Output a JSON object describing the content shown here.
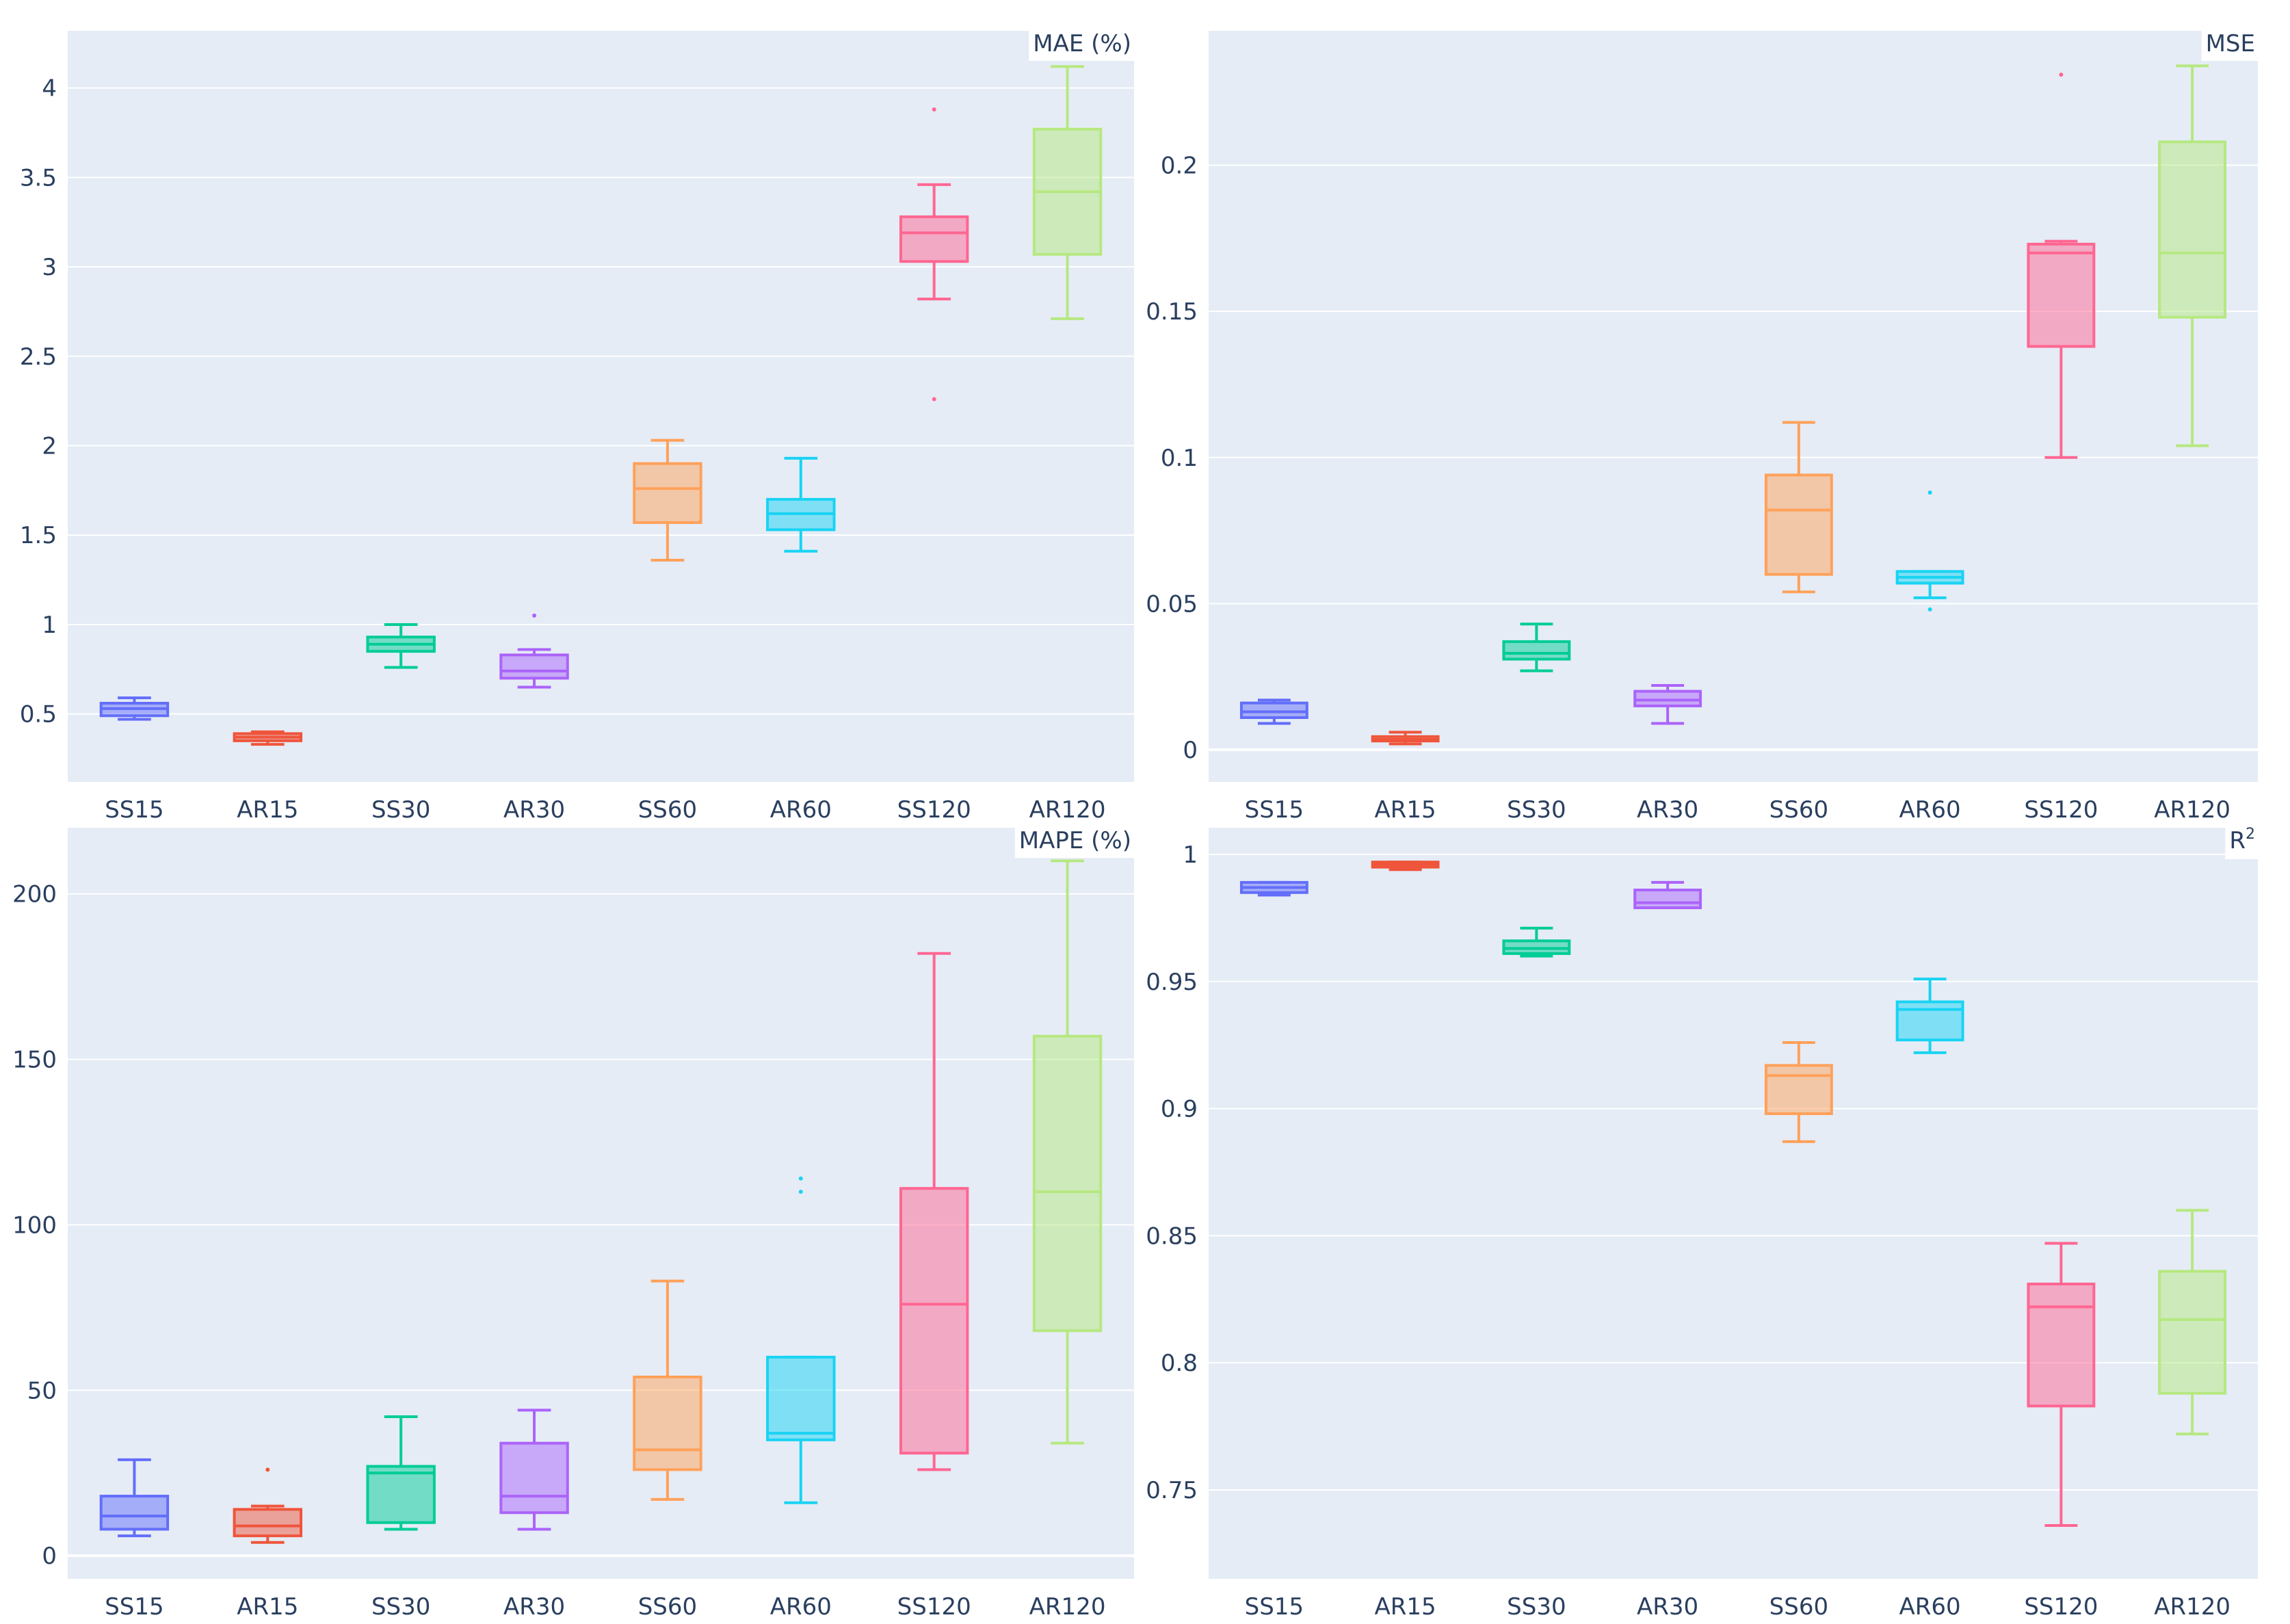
{
  "chart_data": [
    {
      "type": "box",
      "title": "MAE (%)",
      "categories": [
        "SS15",
        "AR15",
        "SS30",
        "AR30",
        "SS60",
        "AR60",
        "SS120",
        "AR120"
      ],
      "colors": [
        "#636efa",
        "#ef553b",
        "#00cc96",
        "#ab63fa",
        "#ffa15a",
        "#19d3f3",
        "#ff6692",
        "#b6e880"
      ],
      "ylim": [
        0.12,
        4.32
      ],
      "yticks": [
        0.5,
        1,
        1.5,
        2,
        2.5,
        3,
        3.5,
        4
      ],
      "ytick_labels": [
        "0.5",
        "1",
        "1.5",
        "2",
        "2.5",
        "3",
        "3.5",
        "4"
      ],
      "boxes": [
        {
          "min": 0.47,
          "q1": 0.49,
          "median": 0.53,
          "q3": 0.56,
          "max": 0.59,
          "outliers": []
        },
        {
          "min": 0.33,
          "q1": 0.35,
          "median": 0.37,
          "q3": 0.39,
          "max": 0.4,
          "outliers": []
        },
        {
          "min": 0.76,
          "q1": 0.85,
          "median": 0.89,
          "q3": 0.93,
          "max": 1.0,
          "outliers": []
        },
        {
          "min": 0.65,
          "q1": 0.7,
          "median": 0.74,
          "q3": 0.83,
          "max": 0.86,
          "outliers": [
            1.05
          ]
        },
        {
          "min": 1.36,
          "q1": 1.57,
          "median": 1.76,
          "q3": 1.9,
          "max": 2.03,
          "outliers": []
        },
        {
          "min": 1.41,
          "q1": 1.53,
          "median": 1.62,
          "q3": 1.7,
          "max": 1.93,
          "outliers": []
        },
        {
          "min": 2.82,
          "q1": 3.03,
          "median": 3.19,
          "q3": 3.28,
          "max": 3.46,
          "outliers": [
            3.88,
            2.26
          ]
        },
        {
          "min": 2.71,
          "q1": 3.07,
          "median": 3.42,
          "q3": 3.77,
          "max": 4.12,
          "outliers": []
        }
      ]
    },
    {
      "type": "box",
      "title": "MSE",
      "categories": [
        "SS15",
        "AR15",
        "SS30",
        "AR30",
        "SS60",
        "AR60",
        "SS120",
        "AR120"
      ],
      "colors": [
        "#636efa",
        "#ef553b",
        "#00cc96",
        "#ab63fa",
        "#ffa15a",
        "#19d3f3",
        "#ff6692",
        "#b6e880"
      ],
      "ylim": [
        -0.011,
        0.246
      ],
      "yticks": [
        0,
        0.05,
        0.1,
        0.15,
        0.2
      ],
      "ytick_labels": [
        "0",
        "0.05",
        "0.1",
        "0.15",
        "0.2"
      ],
      "boxes": [
        {
          "min": 0.009,
          "q1": 0.011,
          "median": 0.013,
          "q3": 0.016,
          "max": 0.017,
          "outliers": []
        },
        {
          "min": 0.002,
          "q1": 0.003,
          "median": 0.0035,
          "q3": 0.0045,
          "max": 0.006,
          "outliers": []
        },
        {
          "min": 0.027,
          "q1": 0.031,
          "median": 0.033,
          "q3": 0.037,
          "max": 0.043,
          "outliers": []
        },
        {
          "min": 0.009,
          "q1": 0.015,
          "median": 0.017,
          "q3": 0.02,
          "max": 0.022,
          "outliers": []
        },
        {
          "min": 0.054,
          "q1": 0.06,
          "median": 0.082,
          "q3": 0.094,
          "max": 0.112,
          "outliers": []
        },
        {
          "min": 0.052,
          "q1": 0.057,
          "median": 0.059,
          "q3": 0.061,
          "max": 0.061,
          "outliers": [
            0.088,
            0.048
          ]
        },
        {
          "min": 0.1,
          "q1": 0.138,
          "median": 0.17,
          "q3": 0.173,
          "max": 0.174,
          "outliers": [
            0.231
          ]
        },
        {
          "min": 0.104,
          "q1": 0.148,
          "median": 0.17,
          "q3": 0.208,
          "max": 0.234,
          "outliers": []
        }
      ]
    },
    {
      "type": "box",
      "title": "MAPE (%)",
      "categories": [
        "SS15",
        "AR15",
        "SS30",
        "AR30",
        "SS60",
        "AR60",
        "SS120",
        "AR120"
      ],
      "colors": [
        "#636efa",
        "#ef553b",
        "#00cc96",
        "#ab63fa",
        "#ffa15a",
        "#19d3f3",
        "#ff6692",
        "#b6e880"
      ],
      "ylim": [
        -7,
        220
      ],
      "yticks": [
        0,
        50,
        100,
        150,
        200
      ],
      "ytick_labels": [
        "0",
        "50",
        "100",
        "150",
        "200"
      ],
      "boxes": [
        {
          "min": 6,
          "q1": 8,
          "median": 12,
          "q3": 18,
          "max": 29,
          "outliers": []
        },
        {
          "min": 4,
          "q1": 6,
          "median": 9,
          "q3": 14,
          "max": 15,
          "outliers": [
            26
          ]
        },
        {
          "min": 8,
          "q1": 10,
          "median": 25,
          "q3": 27,
          "max": 42,
          "outliers": []
        },
        {
          "min": 8,
          "q1": 13,
          "median": 18,
          "q3": 34,
          "max": 44,
          "outliers": []
        },
        {
          "min": 17,
          "q1": 26,
          "median": 32,
          "q3": 54,
          "max": 83,
          "outliers": []
        },
        {
          "min": 16,
          "q1": 35,
          "median": 37,
          "q3": 60,
          "max": 60,
          "outliers": [
            114,
            110
          ]
        },
        {
          "min": 26,
          "q1": 31,
          "median": 76,
          "q3": 111,
          "max": 182,
          "outliers": []
        },
        {
          "min": 34,
          "q1": 68,
          "median": 110,
          "q3": 157,
          "max": 210,
          "outliers": []
        }
      ]
    },
    {
      "type": "box",
      "title": "R",
      "title_sup": "2",
      "categories": [
        "SS15",
        "AR15",
        "SS30",
        "AR30",
        "SS60",
        "AR60",
        "SS120",
        "AR120"
      ],
      "colors": [
        "#636efa",
        "#ef553b",
        "#00cc96",
        "#ab63fa",
        "#ffa15a",
        "#19d3f3",
        "#ff6692",
        "#b6e880"
      ],
      "ylim": [
        0.715,
        1.0105
      ],
      "yticks": [
        0.75,
        0.8,
        0.85,
        0.9,
        0.95,
        1
      ],
      "ytick_labels": [
        "0.75",
        "0.8",
        "0.85",
        "0.9",
        "0.95",
        "1"
      ],
      "boxes": [
        {
          "min": 0.984,
          "q1": 0.985,
          "median": 0.987,
          "q3": 0.989,
          "max": 0.989,
          "outliers": []
        },
        {
          "min": 0.994,
          "q1": 0.995,
          "median": 0.996,
          "q3": 0.997,
          "max": 0.997,
          "outliers": []
        },
        {
          "min": 0.96,
          "q1": 0.961,
          "median": 0.963,
          "q3": 0.966,
          "max": 0.971,
          "outliers": []
        },
        {
          "min": 0.979,
          "q1": 0.979,
          "median": 0.981,
          "q3": 0.986,
          "max": 0.989,
          "outliers": []
        },
        {
          "min": 0.887,
          "q1": 0.898,
          "median": 0.913,
          "q3": 0.917,
          "max": 0.926,
          "outliers": []
        },
        {
          "min": 0.922,
          "q1": 0.927,
          "median": 0.939,
          "q3": 0.942,
          "max": 0.951,
          "outliers": []
        },
        {
          "min": 0.736,
          "q1": 0.783,
          "median": 0.822,
          "q3": 0.831,
          "max": 0.847,
          "outliers": []
        },
        {
          "min": 0.772,
          "q1": 0.788,
          "median": 0.817,
          "q3": 0.836,
          "max": 0.86,
          "outliers": []
        }
      ]
    }
  ]
}
